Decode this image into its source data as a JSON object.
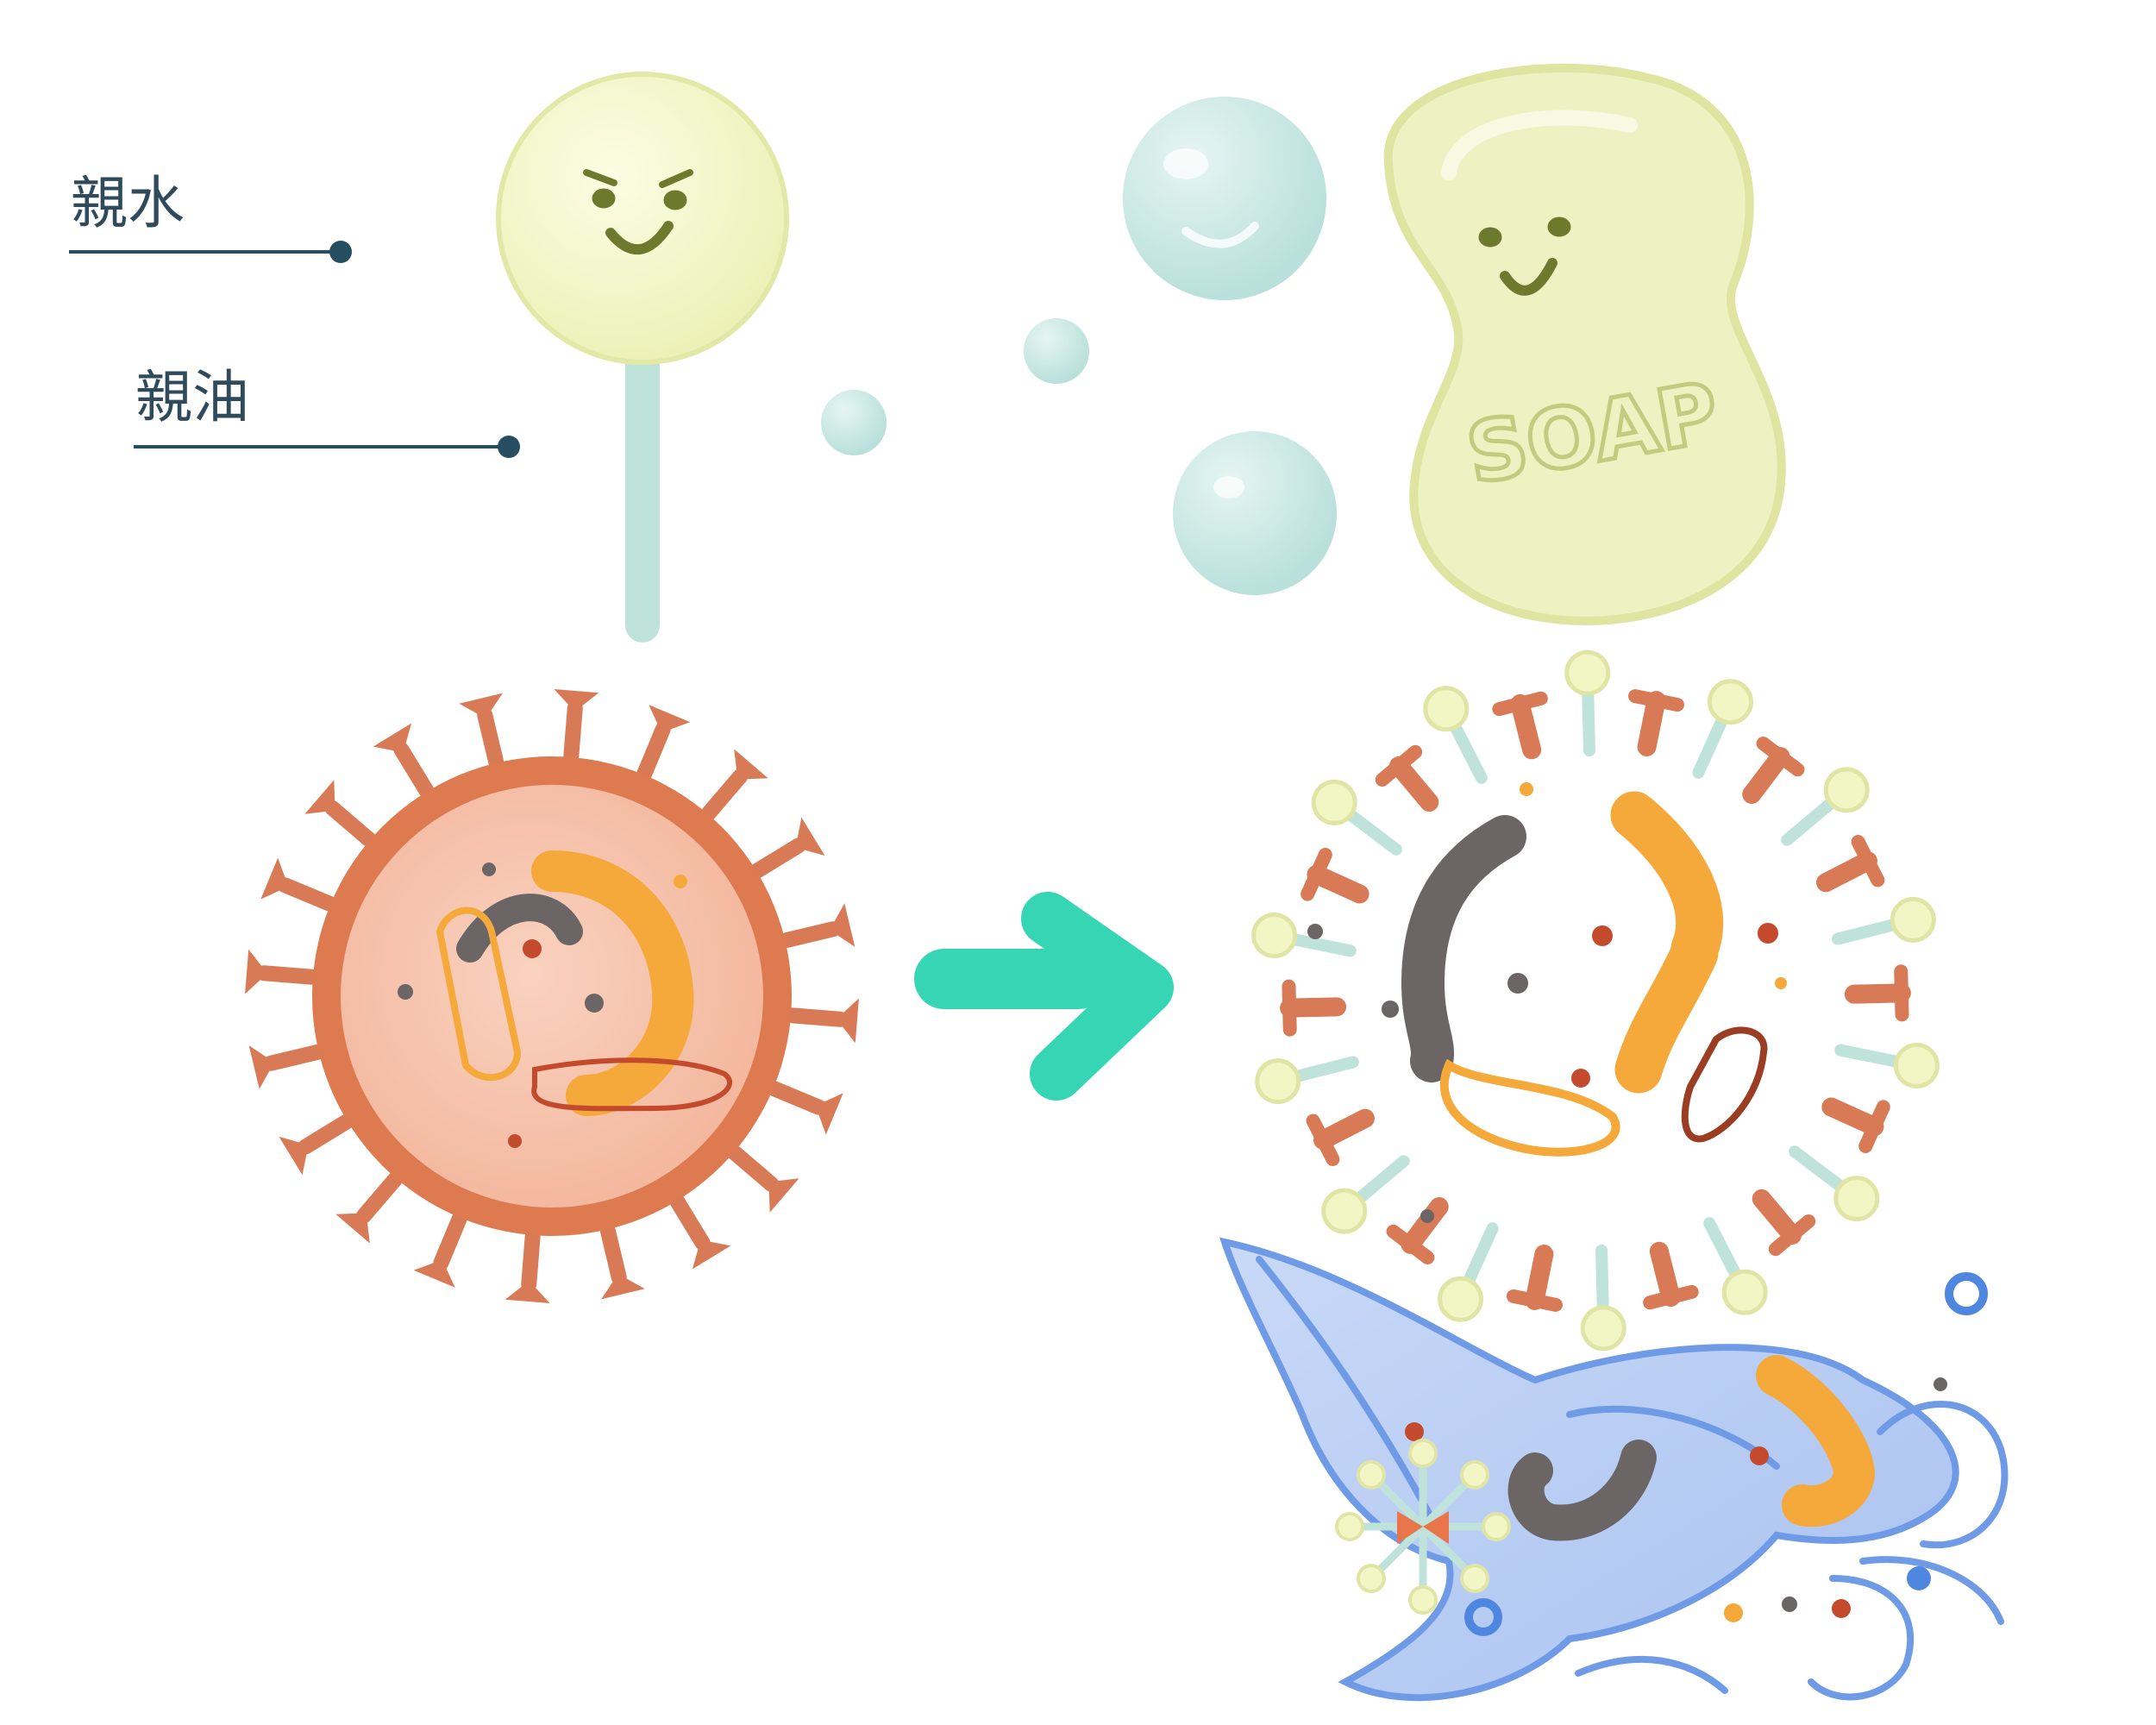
{
  "labels": {
    "hydrophilic": "親水",
    "lipophilic": "親油"
  },
  "soap_text": "SOAP",
  "colors": {
    "label_text": "#2f4a5a",
    "leader_line": "#264e60",
    "surfactant_head": "#f2f5c4",
    "surfactant_tail": "#bfe3da",
    "face": "#6d7a2e",
    "bubble": "#c6e6e2",
    "soap_bar": "#eef1c2",
    "virus_shell": "#de7a50",
    "virus_spike": "#d87a56",
    "virus_core": "#f6c2ab",
    "arrow": "#36d5b4",
    "rna_orange": "#f5a93a",
    "rna_dark": "#6b6565",
    "water": "#b9cdf3",
    "water_outline": "#6f9be6"
  }
}
